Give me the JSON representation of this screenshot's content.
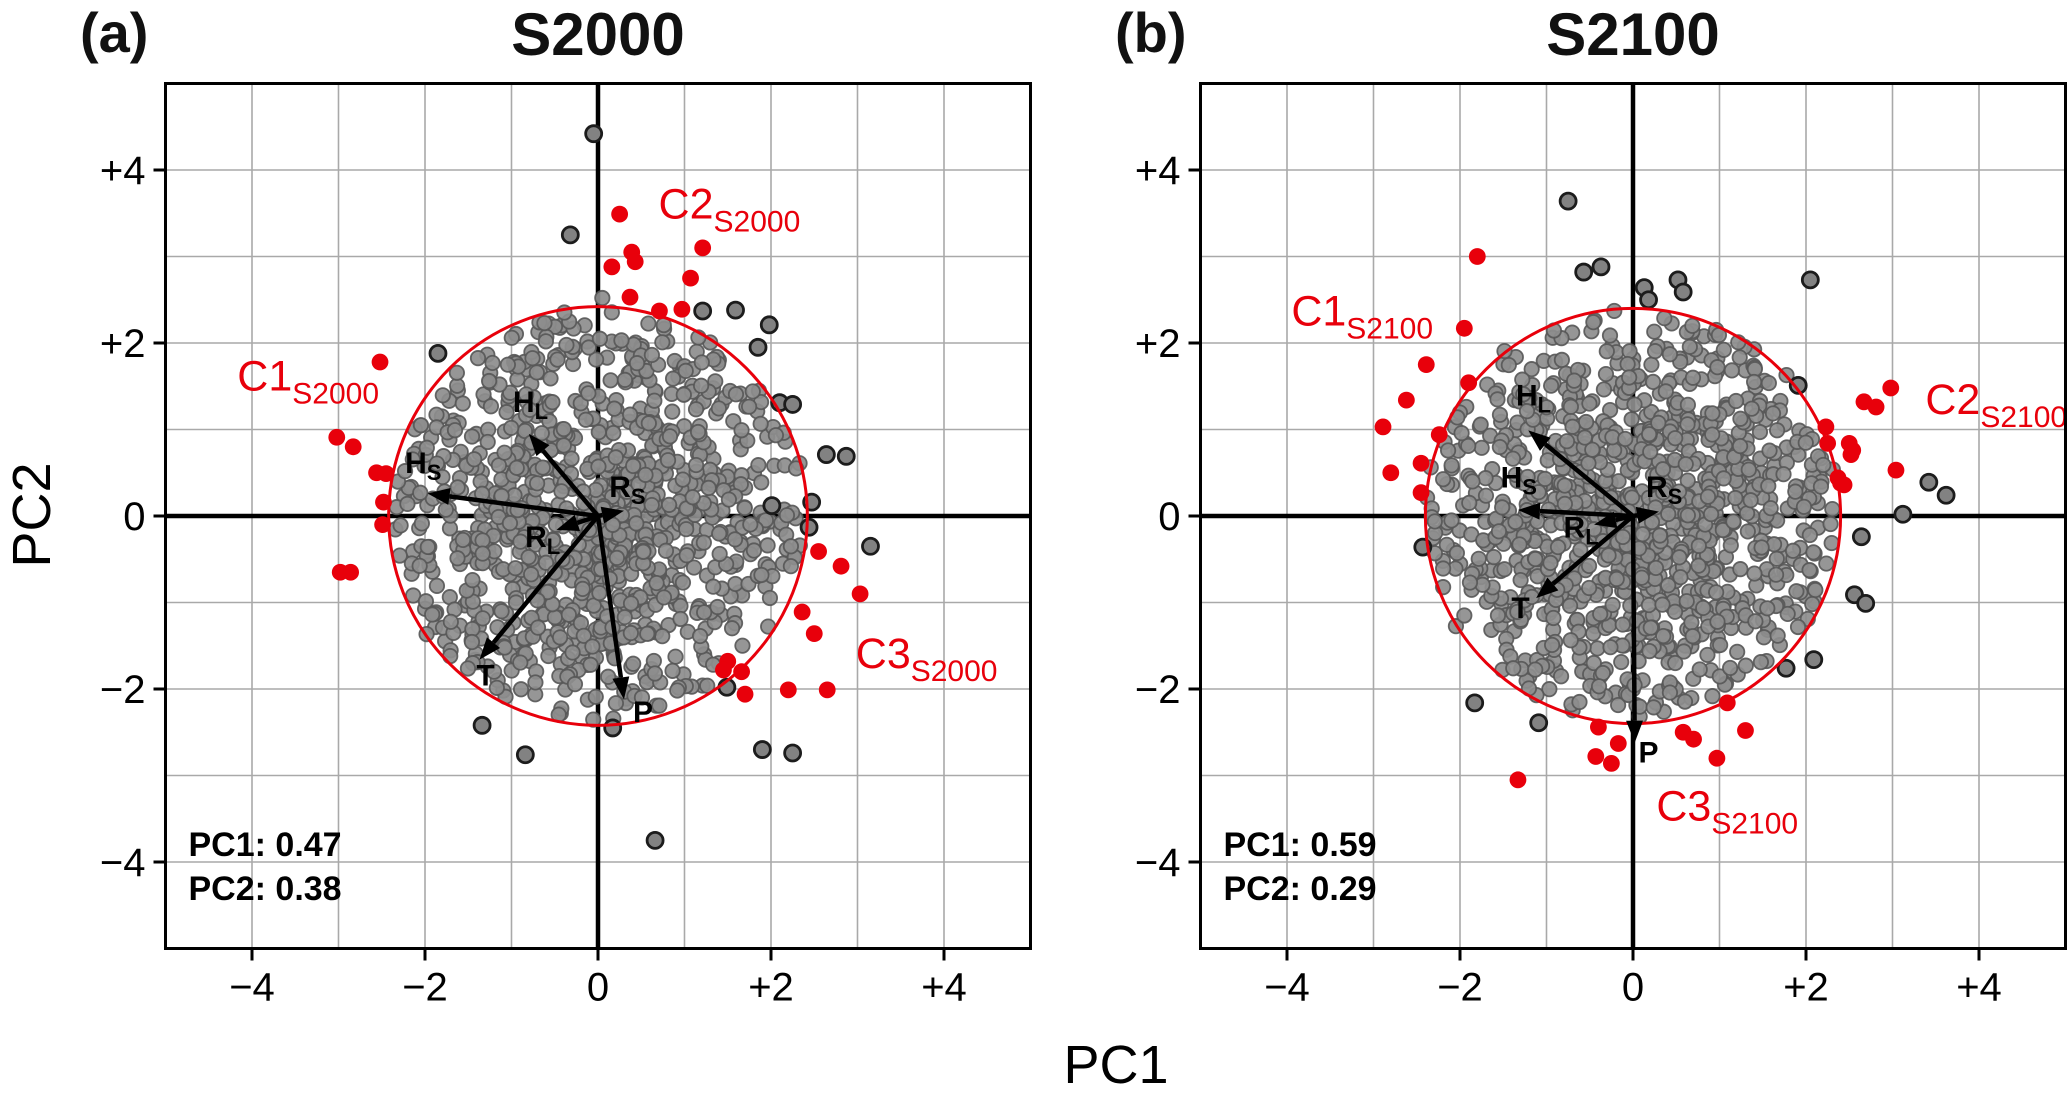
{
  "figure": {
    "xlabel": "PC1",
    "ylabel": "PC2",
    "background": "#ffffff"
  },
  "style": {
    "red": "#e8000b",
    "black": "#000000",
    "gray_fill": "#8d8d8d",
    "gray_edge": "#565656",
    "dark_fill": "#828282",
    "dark_edge": "#1c1c1c",
    "grid_color": "#a9a9a9"
  },
  "chart_data": [
    {
      "type": "scatter",
      "panel_label": "(a)",
      "title": "S2000",
      "xlim": [
        -5,
        5
      ],
      "ylim": [
        -5,
        5
      ],
      "xticks": [
        -4,
        -2,
        0,
        2,
        4
      ],
      "xtick_labels": [
        "−4",
        "−2",
        "0",
        "+2",
        "+4"
      ],
      "yticks": [
        -4,
        -2,
        0,
        2,
        4
      ],
      "ytick_labels": [
        "−4",
        "−2",
        "0",
        "+2",
        "+4"
      ],
      "grid_step": 1,
      "variance_lines": [
        "PC1: 0.47",
        "PC2: 0.38"
      ],
      "circle_radius": 2.42,
      "arrows": [
        {
          "label": "H",
          "sub": "L",
          "tip": [
            -0.8,
            0.95
          ],
          "label_pos": [
            -0.78,
            1.2
          ]
        },
        {
          "label": "H",
          "sub": "S",
          "tip": [
            -1.97,
            0.26
          ],
          "label_pos": [
            -2.02,
            0.5
          ]
        },
        {
          "label": "R",
          "sub": "S",
          "tip": [
            0.3,
            0.06
          ],
          "label_pos": [
            0.34,
            0.22
          ]
        },
        {
          "label": "R",
          "sub": "L",
          "tip": [
            -0.48,
            -0.16
          ],
          "label_pos": [
            -0.64,
            -0.36
          ]
        },
        {
          "label": "T",
          "sub": "",
          "tip": [
            -1.37,
            -1.66
          ],
          "label_pos": [
            -1.3,
            -1.96
          ]
        },
        {
          "label": "P",
          "sub": "",
          "tip": [
            0.3,
            -2.12
          ],
          "label_pos": [
            0.52,
            -2.38
          ]
        }
      ],
      "cluster_labels": [
        {
          "label": "C1",
          "sub": "S2000",
          "pos": [
            -4.17,
            1.45
          ]
        },
        {
          "label": "C2",
          "sub": "S2000",
          "pos": [
            0.7,
            3.44
          ]
        },
        {
          "label": "C3",
          "sub": "S2000",
          "pos": [
            2.98,
            -1.76
          ]
        }
      ],
      "red_points": [
        [
          -2.52,
          1.78
        ],
        [
          -3.02,
          0.91
        ],
        [
          -2.83,
          0.8
        ],
        [
          -2.56,
          0.5
        ],
        [
          -2.45,
          0.49
        ],
        [
          -2.48,
          0.16
        ],
        [
          -2.49,
          -0.1
        ],
        [
          -2.98,
          -0.65
        ],
        [
          -2.86,
          -0.65
        ],
        [
          0.25,
          3.49
        ],
        [
          0.16,
          2.88
        ],
        [
          0.39,
          3.05
        ],
        [
          0.43,
          2.94
        ],
        [
          1.21,
          3.1
        ],
        [
          1.07,
          2.75
        ],
        [
          0.37,
          2.53
        ],
        [
          0.71,
          2.37
        ],
        [
          0.97,
          2.39
        ],
        [
          2.55,
          -0.41
        ],
        [
          2.81,
          -0.58
        ],
        [
          3.03,
          -0.9
        ],
        [
          2.36,
          -1.11
        ],
        [
          2.5,
          -1.36
        ],
        [
          1.5,
          -1.68
        ],
        [
          1.45,
          -1.78
        ],
        [
          1.66,
          -1.8
        ],
        [
          1.7,
          -2.06
        ],
        [
          2.2,
          -2.01
        ],
        [
          2.65,
          -2.01
        ]
      ],
      "dark_points": [
        [
          -0.05,
          4.42
        ],
        [
          -0.32,
          3.25
        ],
        [
          -1.85,
          1.88
        ],
        [
          1.21,
          2.37
        ],
        [
          1.59,
          2.38
        ],
        [
          1.98,
          2.21
        ],
        [
          1.85,
          1.95
        ],
        [
          2.1,
          1.31
        ],
        [
          2.25,
          1.29
        ],
        [
          2.64,
          0.71
        ],
        [
          2.87,
          0.69
        ],
        [
          2.47,
          0.16
        ],
        [
          2.44,
          -0.13
        ],
        [
          2.01,
          0.12
        ],
        [
          3.15,
          -0.35
        ],
        [
          1.49,
          -1.98
        ],
        [
          -1.34,
          -2.42
        ],
        [
          -0.84,
          -2.76
        ],
        [
          0.17,
          -2.45
        ],
        [
          0.66,
          -3.75
        ],
        [
          1.9,
          -2.7
        ],
        [
          2.25,
          -2.74
        ]
      ],
      "gray_extra_points": [
        [
          2.33,
          0.61
        ],
        [
          2.29,
          0.55
        ],
        [
          2.23,
          -0.35
        ],
        [
          2.23,
          -0.58
        ],
        [
          0.05,
          2.52
        ]
      ],
      "cloud": {
        "count": 1100,
        "seed": 7,
        "max_radius": 2.42,
        "components": [
          {
            "frac": 0.55,
            "kind": "gauss",
            "std": 1.0
          },
          {
            "frac": 0.45,
            "kind": "disk",
            "radius": 2.35
          }
        ]
      }
    },
    {
      "type": "scatter",
      "panel_label": "(b)",
      "title": "S2100",
      "xlim": [
        -5,
        5
      ],
      "ylim": [
        -5,
        5
      ],
      "xticks": [
        -4,
        -2,
        0,
        2,
        4
      ],
      "xtick_labels": [
        "−4",
        "−2",
        "0",
        "+2",
        "+4"
      ],
      "yticks": [
        -4,
        -2,
        0,
        2,
        4
      ],
      "ytick_labels": [
        "−4",
        "−2",
        "0",
        "+2",
        "+4"
      ],
      "grid_step": 1,
      "variance_lines": [
        "PC1: 0.59",
        "PC2: 0.29"
      ],
      "circle_radius": 2.4,
      "arrows": [
        {
          "label": "H",
          "sub": "L",
          "tip": [
            -1.21,
            0.99
          ],
          "label_pos": [
            -1.15,
            1.28
          ]
        },
        {
          "label": "H",
          "sub": "S",
          "tip": [
            -1.33,
            0.07
          ],
          "label_pos": [
            -1.32,
            0.33
          ]
        },
        {
          "label": "R",
          "sub": "S",
          "tip": [
            0.3,
            0.05
          ],
          "label_pos": [
            0.36,
            0.22
          ]
        },
        {
          "label": "R",
          "sub": "L",
          "tip": [
            -0.45,
            -0.1
          ],
          "label_pos": [
            -0.6,
            -0.25
          ]
        },
        {
          "label": "T",
          "sub": "",
          "tip": [
            -1.12,
            -0.95
          ],
          "label_pos": [
            -1.3,
            -1.18
          ]
        },
        {
          "label": "P",
          "sub": "",
          "tip": [
            0.02,
            -2.62
          ],
          "label_pos": [
            0.18,
            -2.85
          ]
        }
      ],
      "cluster_labels": [
        {
          "label": "C1",
          "sub": "S2100",
          "pos": [
            -3.95,
            2.2
          ]
        },
        {
          "label": "C2",
          "sub": "S2100",
          "pos": [
            3.38,
            1.18
          ]
        },
        {
          "label": "C3",
          "sub": "S2100",
          "pos": [
            0.27,
            -3.52
          ]
        }
      ],
      "red_points": [
        [
          -1.8,
          3.0
        ],
        [
          -1.95,
          2.17
        ],
        [
          -2.39,
          1.75
        ],
        [
          -1.9,
          1.54
        ],
        [
          -2.62,
          1.34
        ],
        [
          -2.89,
          1.03
        ],
        [
          -2.24,
          0.94
        ],
        [
          -2.45,
          0.61
        ],
        [
          -2.8,
          0.5
        ],
        [
          -2.45,
          0.27
        ],
        [
          2.98,
          1.48
        ],
        [
          2.67,
          1.32
        ],
        [
          2.81,
          1.26
        ],
        [
          2.23,
          1.03
        ],
        [
          2.25,
          0.84
        ],
        [
          2.5,
          0.84
        ],
        [
          2.54,
          0.76
        ],
        [
          2.52,
          0.71
        ],
        [
          2.37,
          0.44
        ],
        [
          2.4,
          0.38
        ],
        [
          2.44,
          0.36
        ],
        [
          3.04,
          0.53
        ],
        [
          -0.4,
          -2.44
        ],
        [
          -0.43,
          -2.78
        ],
        [
          -0.25,
          -2.86
        ],
        [
          -0.17,
          -2.63
        ],
        [
          0.58,
          -2.5
        ],
        [
          0.7,
          -2.58
        ],
        [
          0.97,
          -2.8
        ],
        [
          1.3,
          -2.48
        ],
        [
          1.09,
          -2.16
        ],
        [
          -1.33,
          -3.05
        ]
      ],
      "dark_points": [
        [
          -0.75,
          3.64
        ],
        [
          -0.57,
          2.82
        ],
        [
          -0.37,
          2.88
        ],
        [
          0.13,
          2.64
        ],
        [
          0.18,
          2.5
        ],
        [
          0.52,
          2.73
        ],
        [
          0.58,
          2.59
        ],
        [
          2.05,
          2.73
        ],
        [
          1.91,
          1.51
        ],
        [
          3.42,
          0.39
        ],
        [
          3.62,
          0.24
        ],
        [
          3.12,
          0.02
        ],
        [
          2.64,
          -0.24
        ],
        [
          2.56,
          -0.91
        ],
        [
          2.69,
          -1.01
        ],
        [
          2.09,
          -1.66
        ],
        [
          1.77,
          -1.76
        ],
        [
          -2.43,
          -0.36
        ],
        [
          -1.83,
          -2.16
        ],
        [
          -1.09,
          -2.39
        ]
      ],
      "gray_extra_points": [
        [
          2.14,
          0.69
        ],
        [
          2.2,
          0.59
        ],
        [
          1.4,
          1.55
        ],
        [
          -1.95,
          -1.15
        ]
      ],
      "cloud": {
        "count": 1100,
        "seed": 13,
        "max_radius": 2.42,
        "components": [
          {
            "frac": 0.55,
            "kind": "gauss",
            "std": 1.0
          },
          {
            "frac": 0.45,
            "kind": "disk",
            "radius": 2.35
          }
        ]
      }
    }
  ]
}
